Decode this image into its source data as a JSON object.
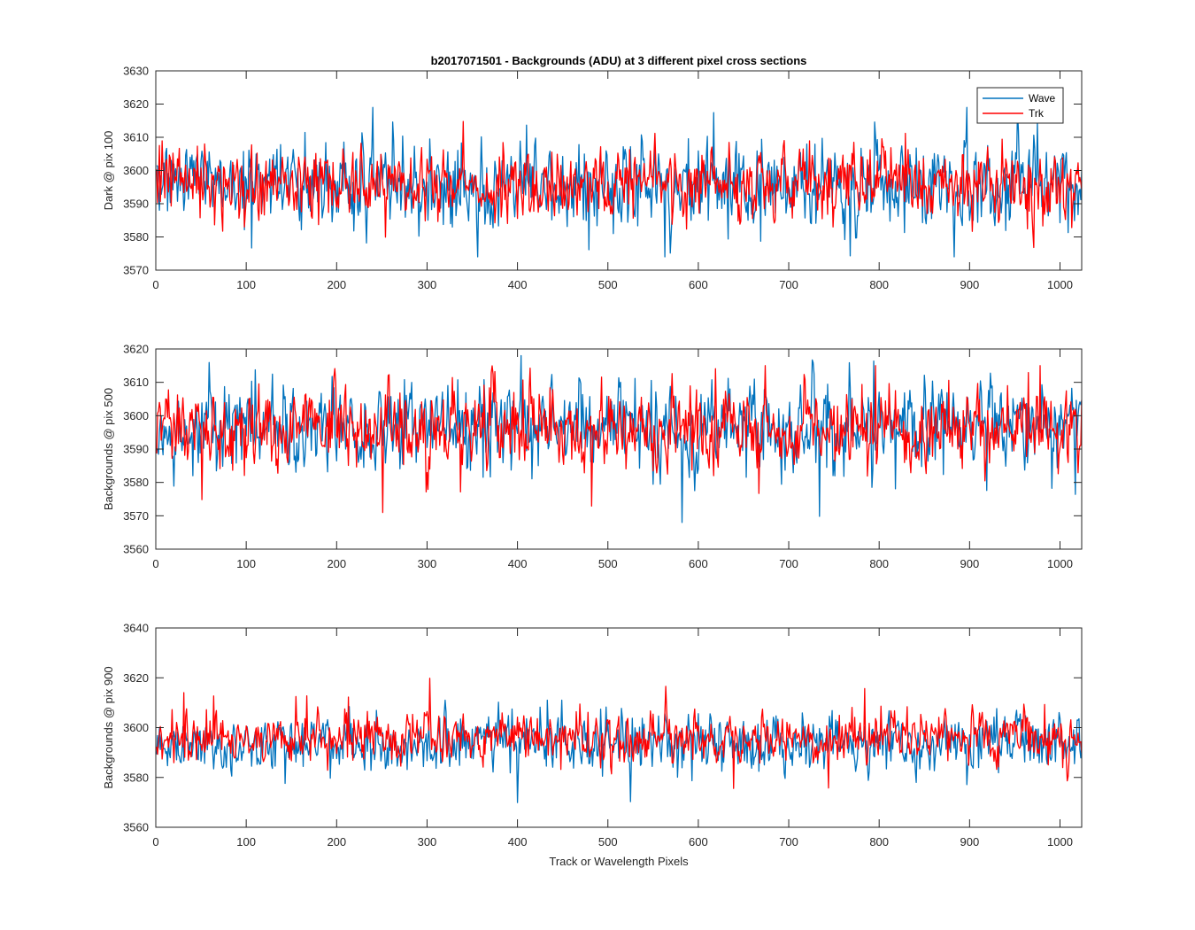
{
  "chart_data": [
    {
      "type": "line",
      "title": "b2017071501 - Backgrounds (ADU) at 3 different pixel cross sections",
      "ylabel": "Dark @ pix 100",
      "xlabel": "",
      "xlim": [
        0,
        1024
      ],
      "ylim": [
        3570,
        3630
      ],
      "xticks": [
        0,
        100,
        200,
        300,
        400,
        500,
        600,
        700,
        800,
        900,
        1000
      ],
      "yticks": [
        3570,
        3580,
        3590,
        3600,
        3610,
        3620,
        3630
      ],
      "legend": "top-right",
      "series": [
        {
          "name": "Wave",
          "color": "#0072BD",
          "mean": 3596,
          "noise_sd": 6.5,
          "min": 3574,
          "max": 3619
        },
        {
          "name": "Trk",
          "color": "#FF0000",
          "mean": 3596,
          "noise_sd": 5.5,
          "min": 3570,
          "max": 3618
        }
      ]
    },
    {
      "type": "line",
      "title": "",
      "ylabel": "Backgrounds @ pix 500",
      "xlabel": "",
      "xlim": [
        0,
        1024
      ],
      "ylim": [
        3560,
        3620
      ],
      "xticks": [
        0,
        100,
        200,
        300,
        400,
        500,
        600,
        700,
        800,
        900,
        1000
      ],
      "yticks": [
        3560,
        3570,
        3580,
        3590,
        3600,
        3610,
        3620
      ],
      "series": [
        {
          "name": "Wave",
          "color": "#0072BD",
          "mean": 3597,
          "noise_sd": 6.5,
          "min": 3568,
          "max": 3618
        },
        {
          "name": "Trk",
          "color": "#FF0000",
          "mean": 3596,
          "noise_sd": 6,
          "min": 3571,
          "max": 3615
        }
      ]
    },
    {
      "type": "line",
      "title": "",
      "ylabel": "Backgrounds @ pix 900",
      "xlabel": "Track or Wavelength Pixels",
      "xlim": [
        0,
        1024
      ],
      "ylim": [
        3560,
        3640
      ],
      "xticks": [
        0,
        100,
        200,
        300,
        400,
        500,
        600,
        700,
        800,
        900,
        1000
      ],
      "yticks": [
        3560,
        3580,
        3600,
        3620,
        3640
      ],
      "series": [
        {
          "name": "Wave",
          "color": "#0072BD",
          "mean": 3594,
          "noise_sd": 5.5,
          "min": 3569,
          "max": 3611
        },
        {
          "name": "Trk",
          "color": "#FF0000",
          "mean": 3596,
          "noise_sd": 5,
          "min": 3570,
          "max": 3623
        }
      ]
    }
  ]
}
